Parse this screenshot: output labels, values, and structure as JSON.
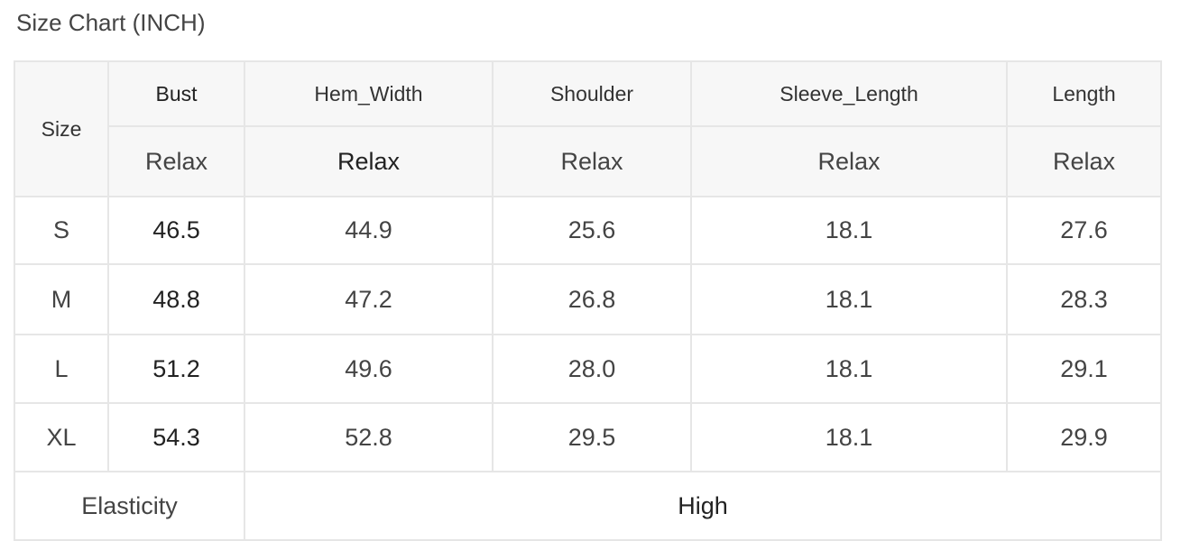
{
  "title": "Size Chart (INCH)",
  "table": {
    "size_header": "Size",
    "columns": [
      "Bust",
      "Hem_Width",
      "Shoulder",
      "Sleeve_Length",
      "Length"
    ],
    "fit": [
      "Relax",
      "Relax",
      "Relax",
      "Relax",
      "Relax"
    ],
    "rows": [
      {
        "size": "S",
        "values": [
          "46.5",
          "44.9",
          "25.6",
          "18.1",
          "27.6"
        ]
      },
      {
        "size": "M",
        "values": [
          "48.8",
          "47.2",
          "26.8",
          "18.1",
          "28.3"
        ]
      },
      {
        "size": "L",
        "values": [
          "51.2",
          "49.6",
          "28.0",
          "18.1",
          "29.1"
        ]
      },
      {
        "size": "XL",
        "values": [
          "54.3",
          "52.8",
          "29.5",
          "18.1",
          "29.9"
        ]
      }
    ],
    "elasticity_label": "Elasticity",
    "elasticity_value": "High"
  }
}
